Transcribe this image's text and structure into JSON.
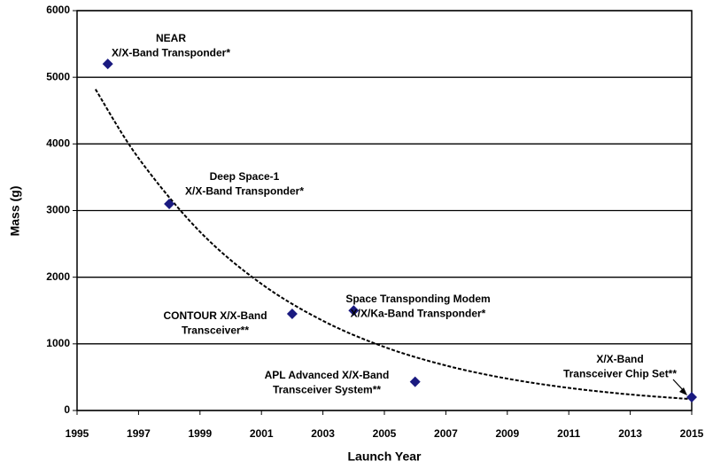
{
  "chart_data": {
    "type": "scatter",
    "x_label": "Launch Year",
    "y_label": "Mass (g)",
    "xlim": [
      1995,
      2015
    ],
    "xticks": [
      1995,
      1997,
      1999,
      2001,
      2003,
      2005,
      2007,
      2009,
      2011,
      2013,
      2015
    ],
    "ylim": [
      0,
      6000
    ],
    "yticks": [
      0,
      1000,
      2000,
      3000,
      4000,
      5000,
      6000
    ],
    "grid": true,
    "series": [
      {
        "color": "#1a1a80",
        "x": [
          1996,
          1998,
          2002,
          2004,
          2006,
          2015
        ],
        "values": [
          5200,
          3100,
          1450,
          1500,
          430,
          200
        ]
      }
    ],
    "trendline": {
      "color": "#000000",
      "x": [
        1995.6,
        1997,
        1999,
        2001,
        2003,
        2005,
        2007,
        2009,
        2011,
        2013,
        2015
      ],
      "values": [
        4820,
        3787,
        2682,
        1900,
        1346,
        953,
        675,
        478,
        339,
        240,
        170
      ]
    },
    "annotations": [
      [
        "NEAR",
        "X/X-Band Transponder*"
      ],
      [
        "Deep Space-1",
        "X/X-Band Transponder*"
      ],
      [
        "CONTOUR X/X-Band",
        "Transceiver**"
      ],
      [
        "Space Transponding Modem",
        "X/X/Ka-Band Transponder*"
      ],
      [
        "APL Advanced X/X-Band",
        "Transceiver System**"
      ],
      [
        "X/X-Band",
        "Transceiver Chip Set**"
      ]
    ]
  }
}
